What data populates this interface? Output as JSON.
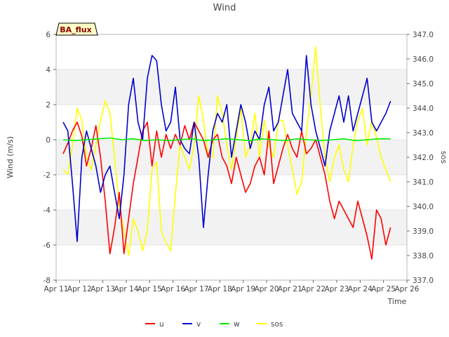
{
  "chart_data": {
    "type": "line",
    "title": "Wind",
    "xlabel": "Time",
    "ylabel": "Wind (m/s)",
    "y2label": "sos",
    "badge": "BA_flux",
    "x_ticks": [
      "Apr 11",
      "Apr 12",
      "Apr 13",
      "Apr 14",
      "Apr 15",
      "Apr 16",
      "Apr 17",
      "Apr 18",
      "Apr 19",
      "Apr 20",
      "Apr 21",
      "Apr 22",
      "Apr 23",
      "Apr 24",
      "Apr 25",
      "Apr 26"
    ],
    "xlim": [
      11,
      26
    ],
    "ylim": [
      -8,
      6
    ],
    "y_ticks": [
      -8,
      -6,
      -4,
      -2,
      0,
      2,
      4,
      6
    ],
    "y2lim": [
      337.0,
      347.0
    ],
    "y2_ticks": [
      "337.0",
      "338.0",
      "339.0",
      "340.0",
      "341.0",
      "342.0",
      "343.0",
      "344.0",
      "345.0",
      "346.0",
      "347.0"
    ],
    "grid": true,
    "bands": "alternating grey horizontal bands",
    "legend": {
      "placement": "bottom-center"
    },
    "colors": {
      "u": "#ff0000",
      "v": "#0000cc",
      "w": "#00ee00",
      "sos": "#ffff00",
      "band": "#f2f2f2"
    },
    "series": [
      {
        "name": "u",
        "axis": "left",
        "x": [
          11.3,
          11.5,
          11.7,
          11.9,
          12.1,
          12.3,
          12.5,
          12.7,
          12.9,
          13.1,
          13.3,
          13.5,
          13.7,
          13.9,
          14.1,
          14.3,
          14.5,
          14.7,
          14.9,
          15.1,
          15.3,
          15.5,
          15.7,
          15.9,
          16.1,
          16.3,
          16.5,
          16.7,
          16.9,
          17.1,
          17.3,
          17.5,
          17.7,
          17.9,
          18.1,
          18.3,
          18.5,
          18.7,
          18.9,
          19.1,
          19.3,
          19.5,
          19.7,
          19.9,
          20.1,
          20.3,
          20.5,
          20.7,
          20.9,
          21.1,
          21.3,
          21.5,
          21.7,
          21.9,
          22.1,
          22.3,
          22.5,
          22.7,
          22.9,
          23.1,
          23.3,
          23.5,
          23.7,
          23.9,
          24.1,
          24.3,
          24.5,
          24.7,
          24.9,
          25.1,
          25.3
        ],
        "values": [
          -0.8,
          -0.2,
          0.5,
          1.0,
          0.2,
          -1.5,
          -0.5,
          0.8,
          -1.0,
          -3.5,
          -6.5,
          -5.0,
          -3.0,
          -6.5,
          -4.5,
          -2.5,
          -1.0,
          0.5,
          1.0,
          -1.5,
          0.5,
          -1.0,
          0.3,
          -0.5,
          0.3,
          -0.3,
          0.8,
          0.0,
          1.0,
          0.5,
          0.0,
          -1.0,
          0.0,
          0.3,
          -1.0,
          -1.5,
          -2.5,
          -1.0,
          -2.0,
          -3.0,
          -2.5,
          -1.5,
          -1.0,
          -2.0,
          0.5,
          -2.5,
          -1.5,
          -0.5,
          0.3,
          -0.5,
          -1.0,
          0.5,
          -0.8,
          -0.5,
          0.0,
          -1.0,
          -2.0,
          -3.5,
          -4.5,
          -3.5,
          -4.0,
          -4.5,
          -5.0,
          -3.5,
          -4.5,
          -5.5,
          -6.8,
          -4.0,
          -4.5,
          -6.0,
          -5.0
        ]
      },
      {
        "name": "v",
        "axis": "left",
        "x": [
          11.3,
          11.5,
          11.7,
          11.9,
          12.1,
          12.3,
          12.5,
          12.7,
          12.9,
          13.1,
          13.3,
          13.5,
          13.7,
          13.9,
          14.1,
          14.3,
          14.5,
          14.7,
          14.9,
          15.1,
          15.3,
          15.5,
          15.7,
          15.9,
          16.1,
          16.3,
          16.5,
          16.7,
          16.9,
          17.1,
          17.3,
          17.5,
          17.7,
          17.9,
          18.1,
          18.3,
          18.5,
          18.7,
          18.9,
          19.1,
          19.3,
          19.5,
          19.7,
          19.9,
          20.1,
          20.3,
          20.5,
          20.7,
          20.9,
          21.1,
          21.3,
          21.5,
          21.7,
          21.9,
          22.1,
          22.3,
          22.5,
          22.7,
          22.9,
          23.1,
          23.3,
          23.5,
          23.7,
          23.9,
          24.1,
          24.3,
          24.5,
          24.7,
          24.9,
          25.1,
          25.3
        ],
        "values": [
          1.0,
          0.5,
          -2.5,
          -5.8,
          -1.0,
          0.5,
          -0.5,
          -1.5,
          -3.0,
          -2.0,
          -1.5,
          -3.0,
          -4.5,
          -2.0,
          2.0,
          3.5,
          1.0,
          0.0,
          3.5,
          4.8,
          4.5,
          2.0,
          0.5,
          1.0,
          3.0,
          0.0,
          -0.5,
          -0.8,
          1.0,
          -1.0,
          -5.0,
          -2.0,
          0.5,
          1.5,
          1.0,
          2.0,
          -1.0,
          0.5,
          2.0,
          1.0,
          -0.5,
          0.5,
          0.0,
          2.0,
          3.0,
          0.5,
          1.0,
          2.5,
          4.0,
          1.5,
          1.0,
          0.5,
          4.8,
          2.0,
          0.5,
          -0.5,
          -1.5,
          0.5,
          1.5,
          2.5,
          1.0,
          2.5,
          0.5,
          1.5,
          2.5,
          3.5,
          1.0,
          0.5,
          1.0,
          1.5,
          2.2
        ]
      },
      {
        "name": "w",
        "axis": "left",
        "x": [
          11.3,
          11.8,
          12.3,
          12.8,
          13.3,
          13.8,
          14.3,
          14.8,
          15.3,
          15.8,
          16.3,
          16.8,
          17.3,
          17.8,
          18.3,
          18.8,
          19.3,
          19.8,
          20.3,
          20.8,
          21.3,
          21.8,
          22.3,
          22.8,
          23.3,
          23.8,
          24.3,
          24.8,
          25.3
        ],
        "values": [
          0.0,
          -0.05,
          0.0,
          0.05,
          0.1,
          0.0,
          0.05,
          -0.05,
          0.0,
          -0.05,
          0.0,
          0.05,
          -0.05,
          0.0,
          0.05,
          0.0,
          -0.05,
          0.05,
          0.0,
          -0.05,
          0.05,
          0.0,
          -0.05,
          0.0,
          0.05,
          -0.05,
          0.0,
          0.05,
          0.05
        ]
      },
      {
        "name": "sos",
        "axis": "right",
        "x": [
          11.3,
          11.5,
          11.7,
          11.9,
          12.1,
          12.3,
          12.5,
          12.7,
          12.9,
          13.1,
          13.3,
          13.5,
          13.7,
          13.9,
          14.1,
          14.3,
          14.5,
          14.7,
          14.9,
          15.1,
          15.3,
          15.5,
          15.7,
          15.9,
          16.1,
          16.3,
          16.5,
          16.7,
          16.9,
          17.1,
          17.3,
          17.5,
          17.7,
          17.9,
          18.1,
          18.3,
          18.5,
          18.7,
          18.9,
          19.1,
          19.3,
          19.5,
          19.7,
          19.9,
          20.1,
          20.3,
          20.5,
          20.7,
          20.9,
          21.1,
          21.3,
          21.5,
          21.7,
          21.9,
          22.1,
          22.3,
          22.5,
          22.7,
          22.9,
          23.1,
          23.3,
          23.5,
          23.7,
          23.9,
          24.1,
          24.3,
          24.5,
          24.7,
          24.9,
          25.1,
          25.3
        ],
        "values": [
          341.5,
          341.3,
          342.5,
          344.0,
          343.5,
          342.0,
          341.5,
          342.5,
          343.5,
          344.3,
          343.8,
          342.0,
          340.0,
          339.0,
          338.0,
          339.5,
          339.0,
          338.2,
          339.0,
          341.5,
          341.8,
          339.0,
          338.5,
          338.2,
          340.5,
          342.5,
          342.0,
          341.5,
          342.5,
          344.5,
          343.5,
          342.0,
          342.0,
          344.5,
          343.8,
          342.5,
          341.5,
          342.8,
          344.0,
          342.0,
          342.5,
          343.8,
          342.0,
          343.5,
          342.5,
          342.0,
          343.5,
          343.5,
          342.5,
          341.5,
          340.5,
          341.0,
          343.0,
          344.5,
          346.5,
          344.0,
          342.0,
          341.0,
          342.0,
          342.5,
          341.5,
          341.0,
          342.5,
          343.5,
          344.0,
          342.5,
          343.5,
          342.8,
          342.0,
          341.5,
          341.0
        ]
      }
    ]
  }
}
